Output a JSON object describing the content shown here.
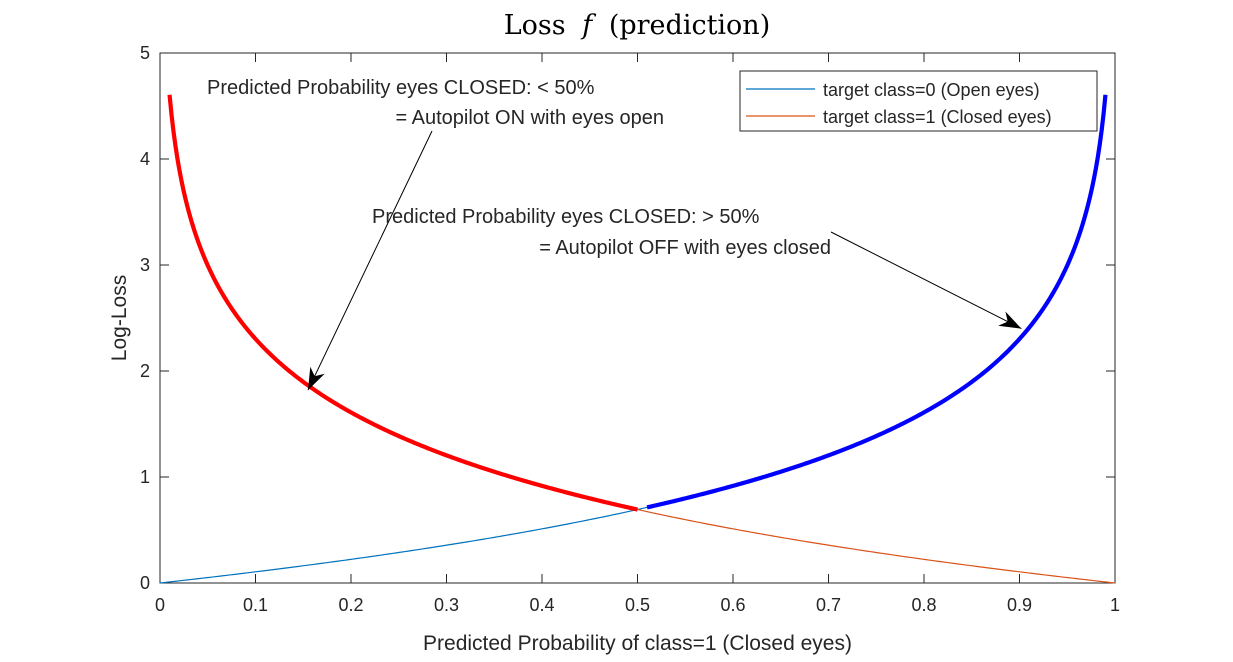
{
  "chart_data": {
    "type": "line",
    "title": "Loss",
    "title_italic": "f",
    "title_paren": "(prediction)",
    "xlabel": "Predicted Probability of class=1 (Closed eyes)",
    "ylabel": "Log-Loss",
    "xlim": [
      0,
      1
    ],
    "ylim": [
      0,
      5
    ],
    "xticks": [
      0,
      0.1,
      0.2,
      0.3,
      0.4,
      0.5,
      0.6,
      0.7,
      0.8,
      0.9,
      1
    ],
    "xtick_labels": [
      "0",
      "0.1",
      "0.2",
      "0.3",
      "0.4",
      "0.5",
      "0.6",
      "0.7",
      "0.8",
      "0.9",
      "1"
    ],
    "yticks": [
      0,
      1,
      2,
      3,
      4,
      5
    ],
    "ytick_labels": [
      "0",
      "1",
      "2",
      "3",
      "4",
      "5"
    ],
    "grid": false,
    "legend_position": "top-right",
    "series": [
      {
        "name": "target class=0 (Open eyes)",
        "color": "#0072BD",
        "x_range": [
          0,
          1
        ],
        "x_note": "thin line spanning x = 0 to 1",
        "function": "-ln(1-x)",
        "x": [
          0,
          0.1,
          0.2,
          0.3,
          0.4,
          0.5,
          0.6,
          0.7,
          0.8,
          0.9,
          0.99
        ],
        "values": [
          0,
          0.105,
          0.223,
          0.357,
          0.511,
          0.693,
          0.916,
          1.204,
          1.609,
          2.303,
          4.605
        ]
      },
      {
        "name": "target class=1 (Closed eyes)",
        "color": "#D95319",
        "function": "-ln(x)",
        "x": [
          0.01,
          0.1,
          0.2,
          0.3,
          0.4,
          0.5,
          0.6,
          0.7,
          0.8,
          0.9,
          1
        ],
        "values": [
          4.605,
          2.303,
          1.609,
          1.204,
          0.916,
          0.693,
          0.511,
          0.357,
          0.223,
          0.105,
          0
        ]
      }
    ],
    "highlights": [
      {
        "color": "#FF0000",
        "function": "-ln(x)",
        "x_range": [
          0.01,
          0.5
        ]
      },
      {
        "color": "#0000FF",
        "function": "-ln(1-x)",
        "x_range": [
          0.51,
          0.99
        ]
      }
    ],
    "annotations": [
      {
        "lines": [
          "Predicted Probability eyes CLOSED: < 50%",
          "= Autopilot ON with eyes open"
        ],
        "arrow_to": [
          0.155,
          1.82
        ]
      },
      {
        "lines": [
          "Predicted Probability eyes CLOSED: > 50%",
          "= Autopilot OFF with eyes closed"
        ],
        "arrow_to": [
          0.902,
          2.4
        ]
      }
    ]
  }
}
